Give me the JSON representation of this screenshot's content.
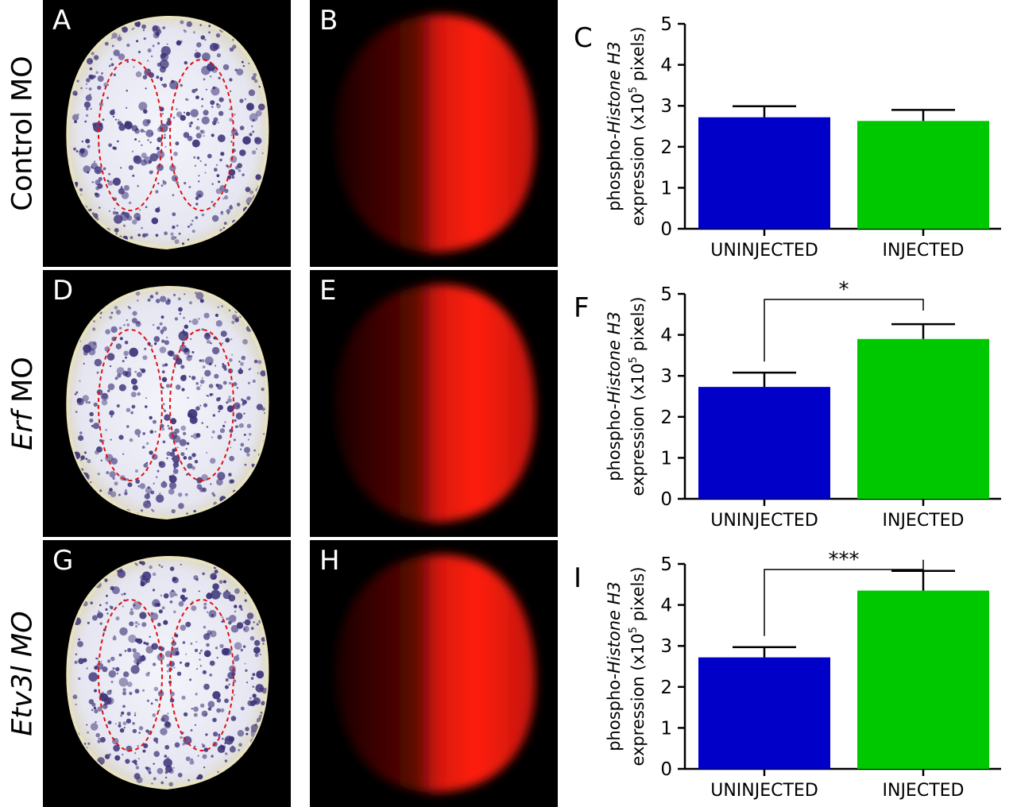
{
  "figure": {
    "rows": [
      {
        "label_parts": [
          {
            "text": "Control MO",
            "italic": false
          }
        ],
        "embryo_letter": "A",
        "fluor_letter": "B",
        "chart_letter": "C"
      },
      {
        "label_parts": [
          {
            "text": "Erf",
            "italic": true
          },
          {
            "text": " MO",
            "italic": false
          }
        ],
        "embryo_letter": "D",
        "fluor_letter": "E",
        "chart_letter": "F"
      },
      {
        "label_parts": [
          {
            "text": "Etv3l MO",
            "italic": true
          }
        ],
        "embryo_letter": "G",
        "fluor_letter": "H",
        "chart_letter": "I"
      }
    ],
    "colors": {
      "uninjected_bar": "#0000c8",
      "injected_bar": "#00c800",
      "embryo_body": "#e6e6f2",
      "embryo_stain": "#3c3278",
      "outline_dash": "#e01010",
      "fluorescence": "#ff2010"
    }
  },
  "chart_data": [
    {
      "type": "bar",
      "panel": "C",
      "categories": [
        "UNINJECTED",
        "INJECTED"
      ],
      "values": [
        2.72,
        2.63
      ],
      "errors": [
        0.27,
        0.27
      ],
      "ylabel_line1_parts": [
        "phospho-",
        "Histone H3"
      ],
      "ylabel_line2_parts": [
        "expression (x10",
        "5",
        " pixels)"
      ],
      "ylim": [
        0,
        5
      ],
      "yticks": [
        "0",
        "1",
        "2",
        "3",
        "4",
        "5"
      ],
      "significance": ""
    },
    {
      "type": "bar",
      "panel": "F",
      "categories": [
        "UNINJECTED",
        "INJECTED"
      ],
      "values": [
        2.73,
        3.9
      ],
      "errors": [
        0.35,
        0.36
      ],
      "ylabel_line1_parts": [
        "phospho-",
        "Histone H3"
      ],
      "ylabel_line2_parts": [
        "expression (x10",
        "5",
        " pixels)"
      ],
      "ylim": [
        0,
        5
      ],
      "yticks": [
        "0",
        "1",
        "2",
        "3",
        "4",
        "5"
      ],
      "significance": "*"
    },
    {
      "type": "bar",
      "panel": "I",
      "categories": [
        "UNINJECTED",
        "INJECTED"
      ],
      "values": [
        2.72,
        4.35
      ],
      "errors": [
        0.25,
        0.48
      ],
      "ylabel_line1_parts": [
        "phospho-",
        "Histone H3"
      ],
      "ylabel_line2_parts": [
        "expression (x10",
        "5",
        " pixels)"
      ],
      "ylim": [
        0,
        5
      ],
      "yticks": [
        "0",
        "1",
        "2",
        "3",
        "4",
        "5"
      ],
      "significance": "***"
    }
  ]
}
